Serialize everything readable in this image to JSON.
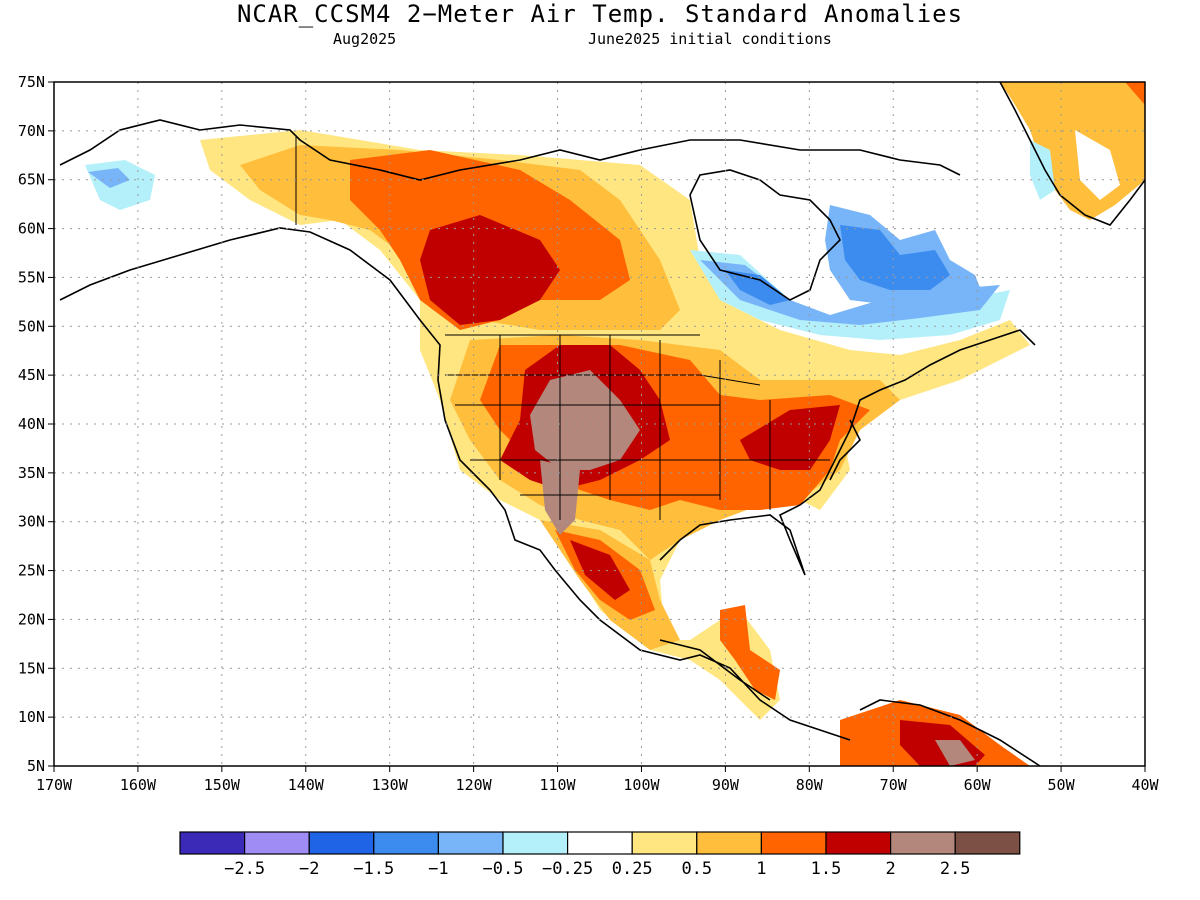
{
  "title": "NCAR_CCSM4 2−Meter Air Temp. Standard Anomalies",
  "subtitle_left": "Aug2025",
  "subtitle_right": "June2025 initial conditions",
  "map": {
    "lon_ticks": [
      "170W",
      "160W",
      "150W",
      "140W",
      "130W",
      "120W",
      "110W",
      "100W",
      "90W",
      "80W",
      "70W",
      "60W",
      "50W",
      "40W"
    ],
    "lat_ticks": [
      "75N",
      "70N",
      "65N",
      "60N",
      "55N",
      "50N",
      "45N",
      "40N",
      "35N",
      "30N",
      "25N",
      "20N",
      "15N",
      "10N",
      "5N"
    ],
    "lon_range": [
      -170,
      -40
    ],
    "lat_range": [
      5,
      75
    ],
    "grid": "dotted"
  },
  "colorbar": {
    "colors": [
      "#3b2ab8",
      "#a08cf5",
      "#1f64e6",
      "#3c8cf0",
      "#78b4f8",
      "#b4f0fa",
      "#ffffff",
      "#ffe680",
      "#ffbe3c",
      "#ff6400",
      "#c00000",
      "#b4877d",
      "#7d5046"
    ],
    "labels": [
      "−2.5",
      "−2",
      "−1.5",
      "−1",
      "−0.5",
      "−0.25",
      "0.25",
      "0.5",
      "1",
      "1.5",
      "2",
      "2.5"
    ]
  }
}
